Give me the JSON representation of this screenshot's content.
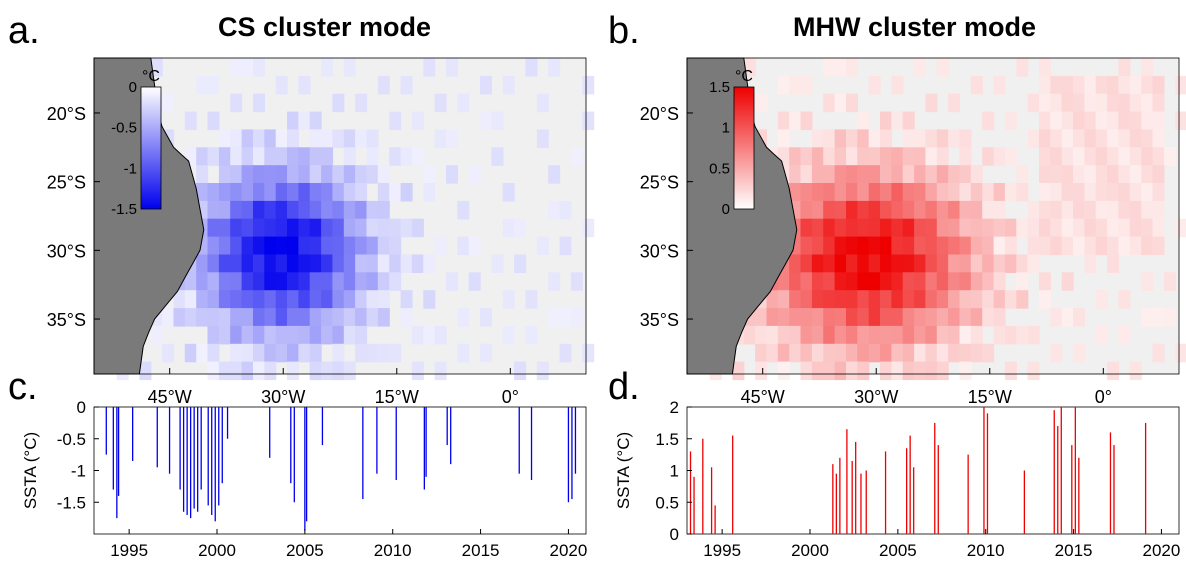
{
  "panels": {
    "a": {
      "letter": "a.",
      "title": "CS cluster mode"
    },
    "b": {
      "letter": "b.",
      "title": "MHW cluster mode"
    },
    "c": {
      "letter": "c."
    },
    "d": {
      "letter": "d."
    }
  },
  "map_axes": {
    "lat_labels": [
      "20°S",
      "25°S",
      "30°S",
      "35°S"
    ],
    "lon_labels": [
      "45°W",
      "30°W",
      "15°W",
      "0°"
    ]
  },
  "colors": {
    "cold": "#0000ee",
    "warm": "#ee0000",
    "land": "#7a7a7a",
    "ocean": "#f0f0f0"
  },
  "chart_data": [
    {
      "type": "heatmap",
      "panel": "a",
      "title": "CS cluster mode",
      "colorbar": {
        "unit": "°C",
        "ticks": [
          "0",
          "-0.5",
          "-1",
          "-1.5"
        ],
        "range": [
          -1.5,
          0
        ]
      },
      "xlabel": "",
      "ylabel": "",
      "x_ticks": [
        "45°W",
        "30°W",
        "15°W",
        "0°"
      ],
      "y_ticks": [
        "20°S",
        "25°S",
        "30°S",
        "35°S"
      ],
      "xlim": [
        -55,
        10
      ],
      "ylim": [
        -39,
        -16
      ],
      "pattern": {
        "center_lon": -31,
        "center_lat": -29.5,
        "peak": -1.5,
        "spread_lon": 10,
        "spread_lat": 5.5
      }
    },
    {
      "type": "heatmap",
      "panel": "b",
      "title": "MHW cluster mode",
      "colorbar": {
        "unit": "°C",
        "ticks": [
          "1.5",
          "1",
          "0.5",
          "0"
        ],
        "range": [
          0,
          1.5
        ]
      },
      "xlabel": "",
      "ylabel": "",
      "x_ticks": [
        "45°W",
        "30°W",
        "15°W",
        "0°"
      ],
      "y_ticks": [
        "20°S",
        "25°S",
        "30°S",
        "35°S"
      ],
      "xlim": [
        -55,
        10
      ],
      "ylim": [
        -39,
        -16
      ],
      "pattern": {
        "center_lon": -32,
        "center_lat": -30,
        "peak": 1.5,
        "spread_lon": 13,
        "spread_lat": 6
      }
    },
    {
      "type": "bar",
      "panel": "c",
      "ylabel": "SSTA (°C)",
      "xlabel": "",
      "xlim": [
        1993,
        2021
      ],
      "ylim": [
        -2,
        0
      ],
      "x_ticks": [
        "1995",
        "2000",
        "2005",
        "2010",
        "2015",
        "2020"
      ],
      "y_ticks": [
        "0",
        "-0.5",
        "-1",
        "-1.5"
      ],
      "series": [
        {
          "x": [
            1993.7,
            1994.1,
            1994.3,
            1994.4,
            1995.2,
            1996.6,
            1997.3,
            1997.9,
            1998.1,
            1998.3,
            1998.5,
            1998.7,
            1998.9,
            1999.1,
            1999.5,
            1999.7,
            1999.9,
            2000.1,
            2000.3,
            2000.6,
            2003.0,
            2004.2,
            2004.4,
            2005.0,
            2005.1,
            2006.0,
            2008.3,
            2009.1,
            2010.2,
            2011.8,
            2011.9,
            2013.1,
            2013.3,
            2017.2,
            2017.9,
            2020.0,
            2020.2,
            2020.4
          ],
          "values": [
            -0.75,
            -1.3,
            -1.75,
            -1.4,
            -0.85,
            -0.95,
            -1.05,
            -1.3,
            -1.65,
            -1.7,
            -1.75,
            -1.6,
            -1.65,
            -1.3,
            -1.55,
            -1.7,
            -1.8,
            -1.55,
            -1.2,
            -0.5,
            -0.8,
            -1.2,
            -1.5,
            -1.95,
            -1.8,
            -0.6,
            -1.45,
            -1.05,
            -1.15,
            -1.3,
            -1.1,
            -0.6,
            -0.9,
            -1.05,
            -1.15,
            -1.5,
            -1.45,
            -1.05
          ]
        }
      ]
    },
    {
      "type": "bar",
      "panel": "d",
      "ylabel": "SSTA (°C)",
      "xlabel": "",
      "xlim": [
        1993,
        2021
      ],
      "ylim": [
        0,
        2
      ],
      "x_ticks": [
        "1995",
        "2000",
        "2005",
        "2010",
        "2015",
        "2020"
      ],
      "y_ticks": [
        "0",
        "0.5",
        "1",
        "1.5",
        "2"
      ],
      "series": [
        {
          "x": [
            1993.2,
            1993.4,
            1993.9,
            1994.4,
            1994.6,
            1995.6,
            2001.3,
            2001.5,
            2001.7,
            2002.1,
            2002.4,
            2002.6,
            2002.9,
            2003.2,
            2004.3,
            2005.5,
            2005.7,
            2005.9,
            2007.1,
            2007.3,
            2009.0,
            2009.9,
            2010.1,
            2012.2,
            2013.9,
            2014.1,
            2014.3,
            2014.9,
            2015.1,
            2015.3,
            2017.1,
            2017.3,
            2019.1
          ],
          "values": [
            1.3,
            0.9,
            1.5,
            1.05,
            0.45,
            1.55,
            1.1,
            0.95,
            1.2,
            1.65,
            1.15,
            1.45,
            0.95,
            1.0,
            1.3,
            1.35,
            1.55,
            1.05,
            1.75,
            1.4,
            1.25,
            2.0,
            1.9,
            1.0,
            1.95,
            1.7,
            2.0,
            1.4,
            2.0,
            1.2,
            1.6,
            1.4,
            1.75
          ]
        }
      ]
    }
  ]
}
